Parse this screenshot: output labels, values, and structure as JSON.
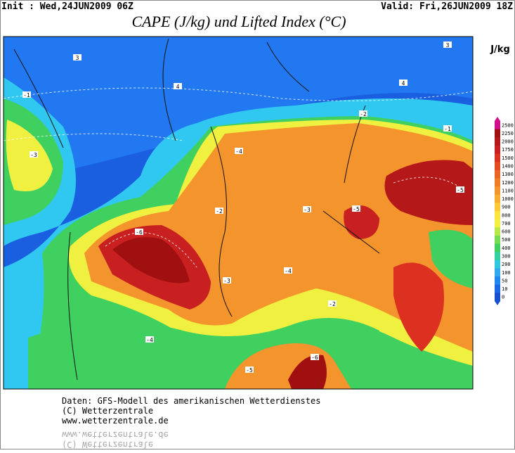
{
  "header": {
    "init": "Init : Wed,24JUN2009 06Z",
    "valid": "Valid: Fri,26JUN2009 18Z",
    "title": "CAPE (J/kg) und Lifted Index (°C)"
  },
  "legend": {
    "unit": "J/kg",
    "levels": [
      2500,
      2250,
      2000,
      1750,
      1500,
      1400,
      1300,
      1200,
      1100,
      1000,
      900,
      800,
      700,
      600,
      500,
      400,
      300,
      200,
      100,
      50,
      10,
      0
    ],
    "colors": [
      "#d0108c",
      "#a01010",
      "#b41818",
      "#c82020",
      "#dc3020",
      "#e44c20",
      "#ec6424",
      "#f07c28",
      "#f4942c",
      "#f8ac30",
      "#fcc834",
      "#fce43c",
      "#f0f040",
      "#b8e848",
      "#78dc50",
      "#40d060",
      "#30d0a0",
      "#30c8e0",
      "#30a8f0",
      "#2088f0",
      "#1868e8",
      "#1850d0"
    ]
  },
  "contour_labels": [
    "-4",
    "-3",
    "-5",
    "-6",
    "-5",
    "-2",
    "-4",
    "-3",
    "-2",
    "-5",
    "-6",
    "-4",
    "-1",
    "-3",
    "3",
    "4",
    "4",
    "3",
    "-2",
    "-1"
  ],
  "footer": {
    "lines": [
      "Daten: GFS-Modell des amerikanischen Wetterdienstes",
      "(C) Wetterzentrale",
      "www.wetterzentrale.de"
    ]
  }
}
